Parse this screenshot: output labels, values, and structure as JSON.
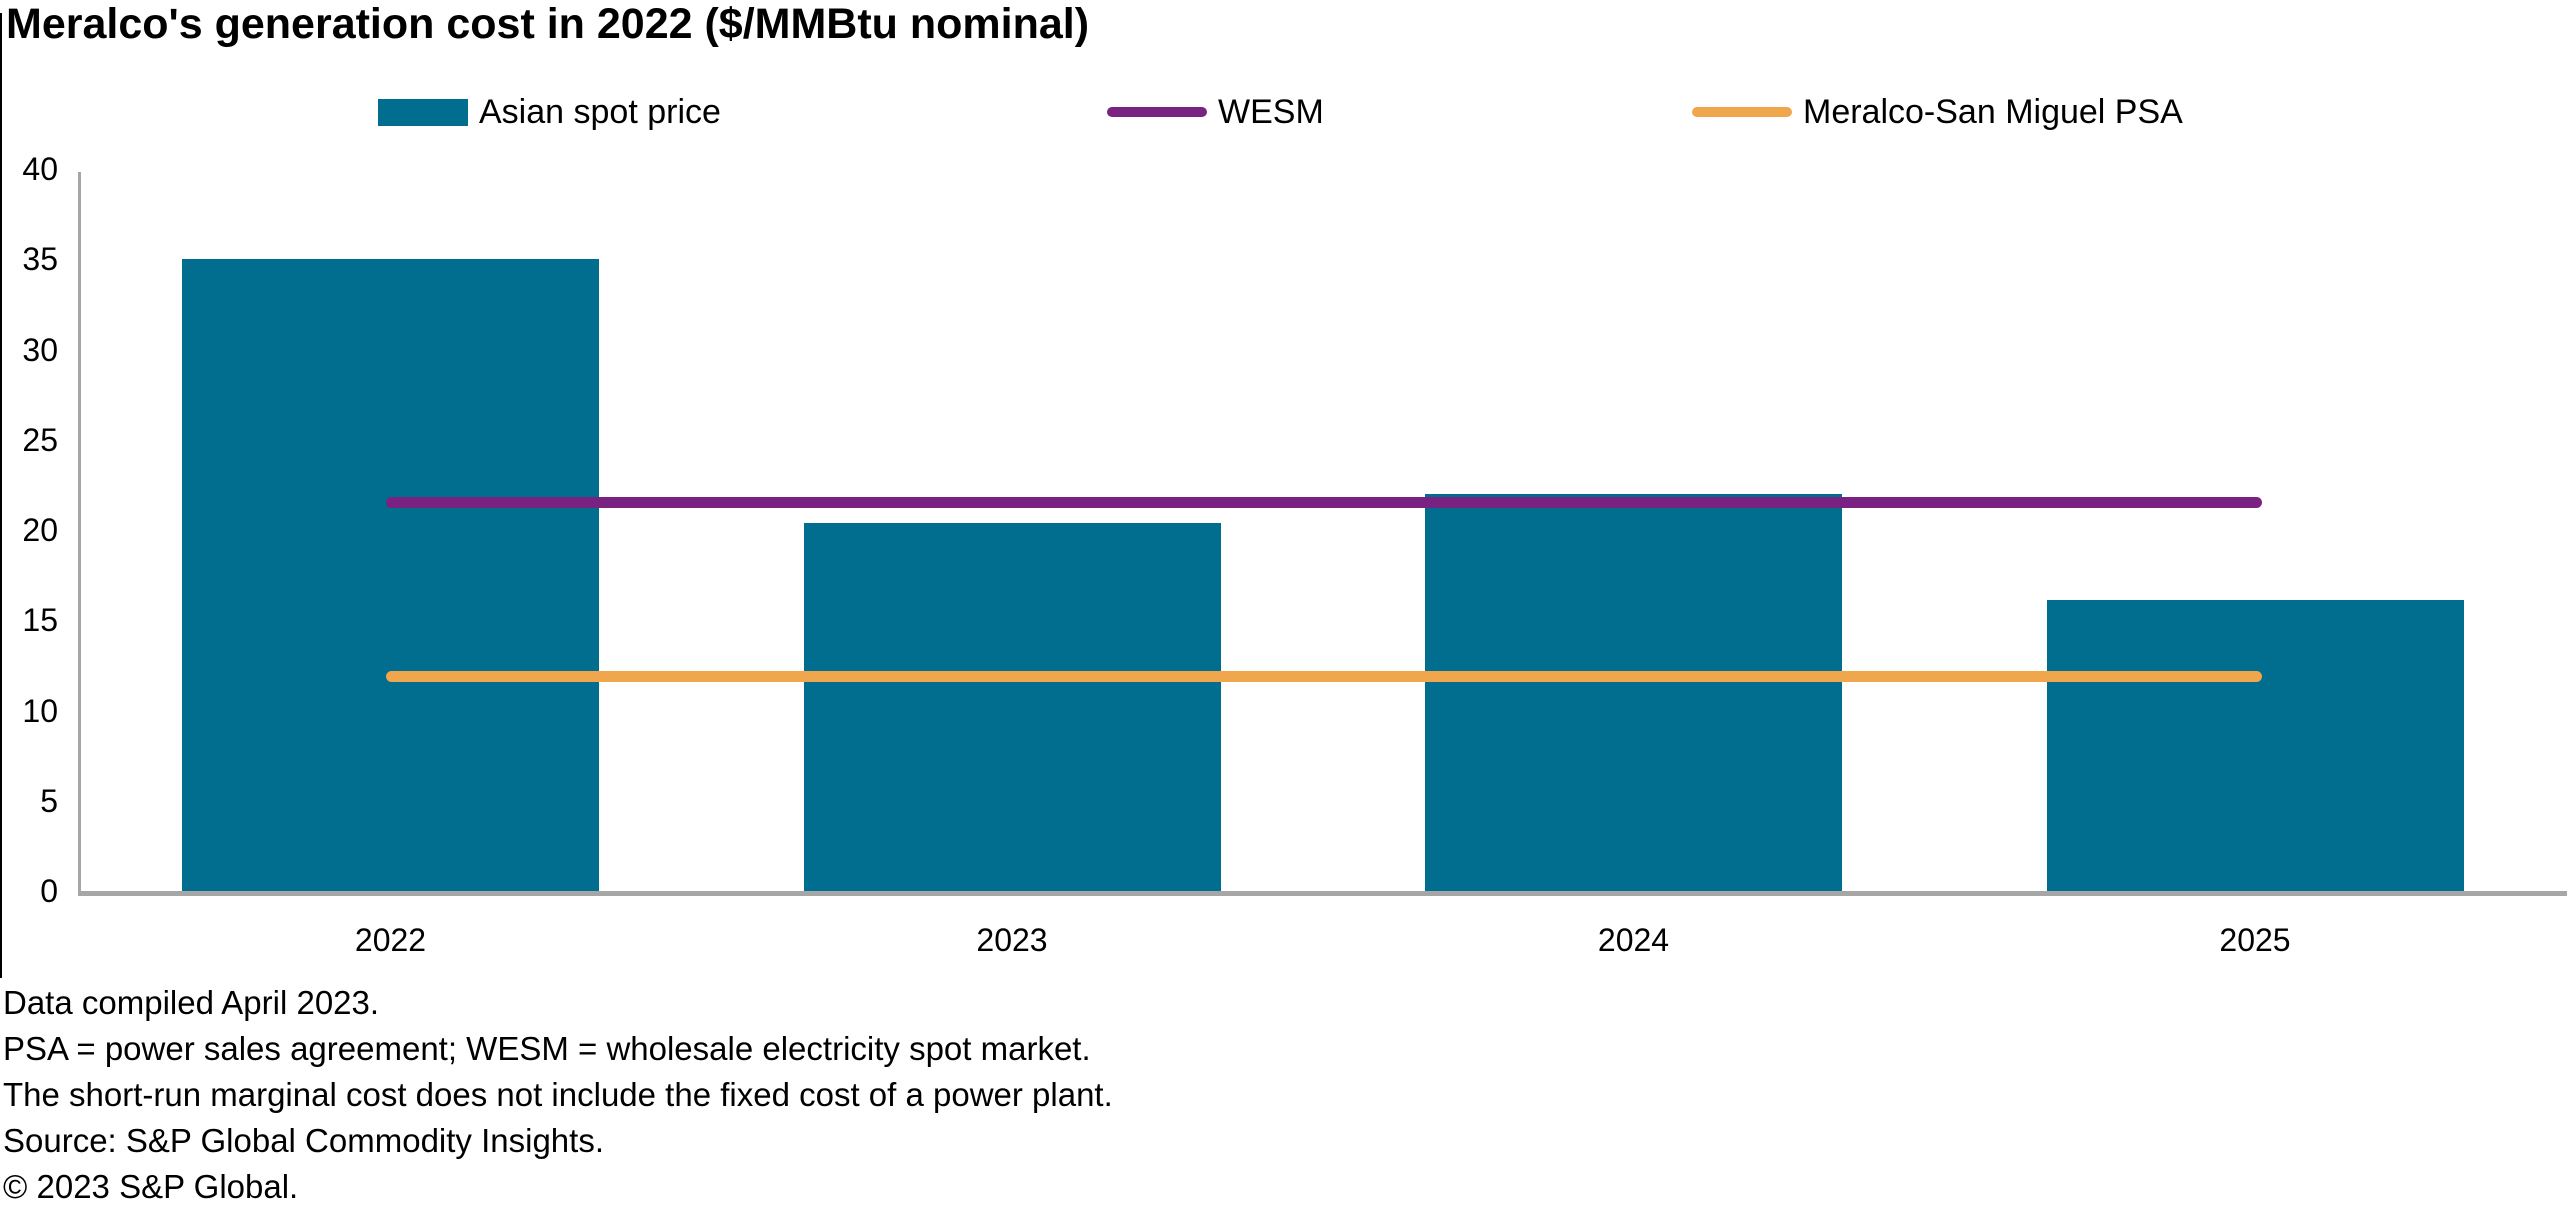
{
  "title": "Meralco's generation cost in 2022 ($/MMBtu nominal)",
  "legend": [
    {
      "label": "Asian spot price",
      "swatch": "bar",
      "color": "#016d8f"
    },
    {
      "label": "WESM",
      "swatch": "line",
      "color": "#7a2282"
    },
    {
      "label": "Meralco-San Miguel PSA",
      "swatch": "line",
      "color": "#f0a64c"
    }
  ],
  "chart_data": {
    "type": "bar",
    "categories": [
      "2022",
      "2023",
      "2024",
      "2025"
    ],
    "series": [
      {
        "name": "Asian spot price",
        "type": "bar",
        "color": "#016d8f",
        "values": [
          35.0,
          20.4,
          22.0,
          16.1
        ]
      },
      {
        "name": "WESM",
        "type": "line",
        "color": "#7a2282",
        "values": [
          21.5,
          21.5,
          21.5,
          21.5
        ]
      },
      {
        "name": "Meralco-San Miguel PSA",
        "type": "line",
        "color": "#f0a64c",
        "values": [
          11.9,
          11.9,
          11.9,
          11.9
        ]
      }
    ],
    "title": "Meralco's generation cost in 2022 ($/MMBtu nominal)",
    "xlabel": "",
    "ylabel": "",
    "ylim": [
      0,
      40
    ],
    "yticks": [
      0,
      5,
      10,
      15,
      20,
      25,
      30,
      35,
      40
    ],
    "grid": false,
    "legend_position": "top"
  },
  "footer": {
    "lines": [
      "Data compiled April 2023.",
      "PSA = power sales agreement; WESM = wholesale electricity spot market.",
      "The short-run marginal cost does not include the fixed cost of a power plant.",
      "Source: S&P Global Commodity Insights.",
      "© 2023 S&P Global."
    ]
  },
  "colors": {
    "bar": "#016d8f",
    "wesm_line": "#7a2282",
    "psa_line": "#f0a64c",
    "axis": "#a6a6a6",
    "text": "#000000"
  }
}
